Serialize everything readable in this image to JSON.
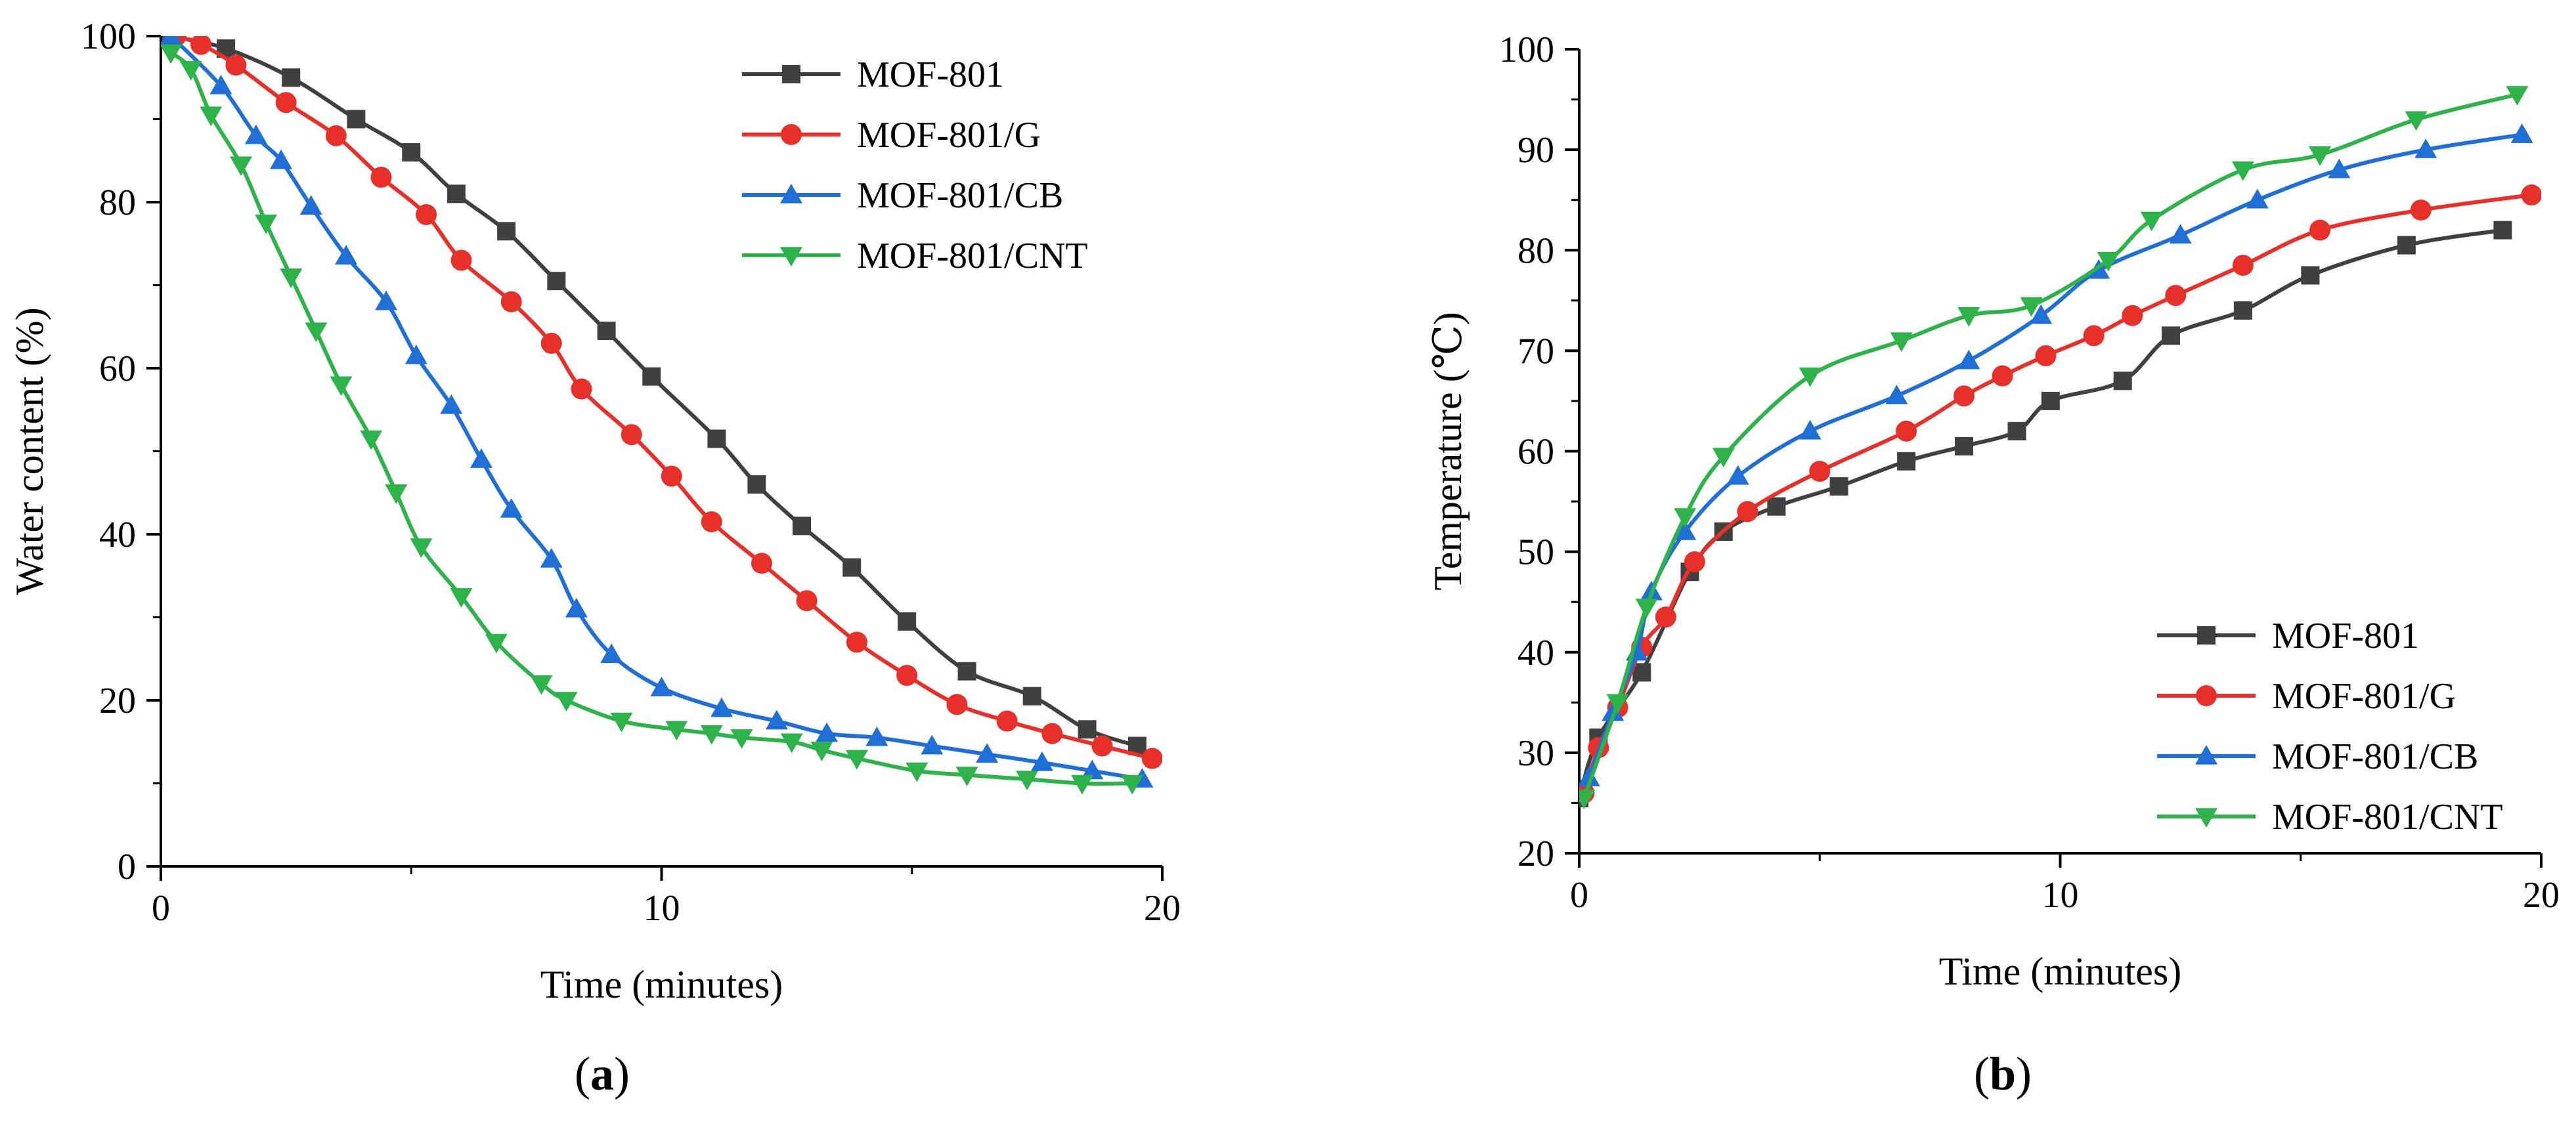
{
  "chart_data": [
    {
      "type": "line",
      "panel_label": "a",
      "xlabel": "Time (minutes)",
      "ylabel": "Water content (%)",
      "xlim": [
        0,
        20
      ],
      "ylim": [
        0,
        100
      ],
      "xticks": [
        0,
        10,
        20
      ],
      "yticks": [
        0,
        20,
        40,
        60,
        80,
        100
      ],
      "legend_position": "top-right",
      "grid": false,
      "series": [
        {
          "name": "MOF-801",
          "color": "#404040",
          "marker": "square",
          "x": [
            0.2,
            1.3,
            2.6,
            3.9,
            5.0,
            5.9,
            6.9,
            7.9,
            8.9,
            9.8,
            11.1,
            11.9,
            12.8,
            13.8,
            14.9,
            16.1,
            17.4,
            18.5,
            19.5
          ],
          "y": [
            100,
            98.5,
            95,
            90,
            86,
            81,
            76.5,
            70.5,
            64.5,
            59,
            51.5,
            46,
            41,
            36,
            29.5,
            23.5,
            20.5,
            16.5,
            14.5
          ]
        },
        {
          "name": "MOF-801/G",
          "color": "#e8302b",
          "marker": "circle",
          "x": [
            0.3,
            0.8,
            1.5,
            2.5,
            3.5,
            4.4,
            5.3,
            6.0,
            7.0,
            7.8,
            8.4,
            9.4,
            10.2,
            11.0,
            12.0,
            12.9,
            13.9,
            14.9,
            15.9,
            16.9,
            17.8,
            18.8,
            19.8
          ],
          "y": [
            100,
            99,
            96.5,
            92,
            88,
            83,
            78.5,
            73,
            68,
            63,
            57.5,
            52,
            47,
            41.5,
            36.5,
            32,
            27,
            23,
            19.5,
            17.5,
            16,
            14.5,
            13
          ]
        },
        {
          "name": "MOF-801/CB",
          "color": "#1f6fd6",
          "marker": "triangle-up",
          "x": [
            0.2,
            1.2,
            1.9,
            2.4,
            3.0,
            3.7,
            4.5,
            5.1,
            5.8,
            6.4,
            7.0,
            7.8,
            8.3,
            9.0,
            10.0,
            11.2,
            12.3,
            13.3,
            14.3,
            15.4,
            16.5,
            17.6,
            18.6,
            19.6
          ],
          "y": [
            100,
            94,
            88,
            85,
            79.5,
            73.5,
            68,
            61.5,
            55.5,
            49,
            43,
            37,
            31,
            25.5,
            21.5,
            19,
            17.5,
            16,
            15.5,
            14.5,
            13.5,
            12.5,
            11.5,
            10.5
          ]
        },
        {
          "name": "MOF-801/CNT",
          "color": "#2eb24a",
          "marker": "triangle-down",
          "x": [
            0.2,
            0.6,
            1.0,
            1.6,
            2.1,
            2.6,
            3.1,
            3.6,
            4.2,
            4.7,
            5.2,
            6.0,
            6.7,
            7.6,
            8.1,
            9.2,
            10.3,
            11.0,
            11.6,
            12.6,
            13.2,
            13.9,
            15.1,
            16.1,
            17.3,
            18.4,
            19.4
          ],
          "y": [
            98,
            96,
            90.5,
            84.5,
            77.5,
            71,
            64.5,
            58,
            51.5,
            45,
            38.5,
            32.5,
            27,
            22,
            20,
            17.5,
            16.5,
            16,
            15.5,
            15,
            14,
            13,
            11.5,
            11,
            10.5,
            10,
            10
          ]
        }
      ]
    },
    {
      "type": "line",
      "panel_label": "b",
      "xlabel": "Time (minutes)",
      "ylabel": "Temperature (℃)",
      "xlim": [
        0,
        20
      ],
      "ylim": [
        20,
        100
      ],
      "xticks": [
        0,
        10,
        20
      ],
      "yticks": [
        20,
        30,
        40,
        50,
        60,
        70,
        80,
        90,
        100
      ],
      "legend_position": "bottom-right",
      "grid": false,
      "series": [
        {
          "name": "MOF-801",
          "color": "#404040",
          "marker": "square",
          "x": [
            0,
            0.4,
            1.3,
            2.3,
            3.0,
            4.1,
            5.4,
            6.8,
            8.0,
            9.1,
            9.8,
            11.3,
            12.3,
            13.8,
            15.2,
            17.2,
            19.2
          ],
          "y": [
            25.5,
            31.5,
            38,
            48,
            52,
            54.5,
            56.5,
            59,
            60.5,
            62,
            65,
            67,
            71.5,
            74,
            77.5,
            80.5,
            82
          ]
        },
        {
          "name": "MOF-801/G",
          "color": "#e8302b",
          "marker": "circle",
          "x": [
            0.1,
            0.4,
            0.8,
            1.3,
            1.8,
            2.4,
            3.5,
            5.0,
            6.8,
            8.0,
            8.8,
            9.7,
            10.7,
            11.5,
            12.4,
            13.8,
            15.4,
            17.5,
            19.8
          ],
          "y": [
            26,
            30.5,
            34.5,
            40.5,
            43.5,
            49,
            54,
            58,
            62,
            65.5,
            67.5,
            69.5,
            71.5,
            73.5,
            75.5,
            78.5,
            82,
            84,
            85.5
          ]
        },
        {
          "name": "MOF-801/CB",
          "color": "#1f6fd6",
          "marker": "triangle-up",
          "x": [
            0.2,
            0.7,
            1.2,
            1.5,
            2.2,
            3.3,
            4.8,
            6.6,
            8.1,
            9.6,
            10.8,
            12.5,
            14.1,
            15.8,
            17.6,
            19.6
          ],
          "y": [
            27.5,
            34,
            40,
            46,
            52,
            57.5,
            62,
            65.5,
            69,
            73.5,
            78,
            81.5,
            85,
            88,
            90,
            91.5
          ]
        },
        {
          "name": "MOF-801/CNT",
          "color": "#2eb24a",
          "marker": "triangle-down",
          "x": [
            0.1,
            0.8,
            1.4,
            2.2,
            3.0,
            4.8,
            6.7,
            8.1,
            9.4,
            11.0,
            11.9,
            13.8,
            15.4,
            17.4,
            19.5
          ],
          "y": [
            25.5,
            35,
            44.5,
            53.5,
            59.5,
            67.5,
            71,
            73.5,
            74.5,
            79,
            83,
            88,
            89.5,
            93,
            95.5
          ]
        }
      ]
    }
  ]
}
